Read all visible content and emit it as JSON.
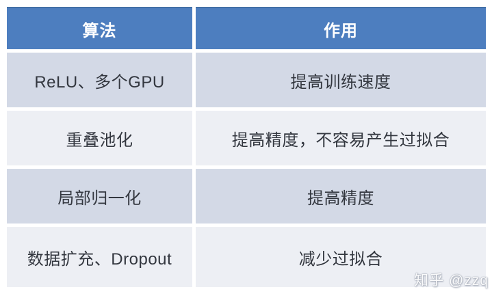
{
  "page": {
    "background": "#ffffff"
  },
  "table": {
    "columns": [
      {
        "label": "算法"
      },
      {
        "label": "作用"
      }
    ],
    "rows": [
      {
        "algorithm": "ReLU、多个GPU",
        "effect": "提高训练速度"
      },
      {
        "algorithm": "重叠池化",
        "effect": "提高精度，不容易产生过拟合"
      },
      {
        "algorithm": "局部归一化",
        "effect": "提高精度"
      },
      {
        "algorithm": "数据扩充、Dropout",
        "effect": "减少过拟合"
      }
    ],
    "colors": {
      "header_bg": "#4d7ebf",
      "header_text": "#ffffff",
      "row_dark": "#d3d9e6",
      "row_light": "#edeff4",
      "cell_text": "#33373f"
    }
  },
  "watermark": {
    "text": "知乎 @zzq"
  }
}
